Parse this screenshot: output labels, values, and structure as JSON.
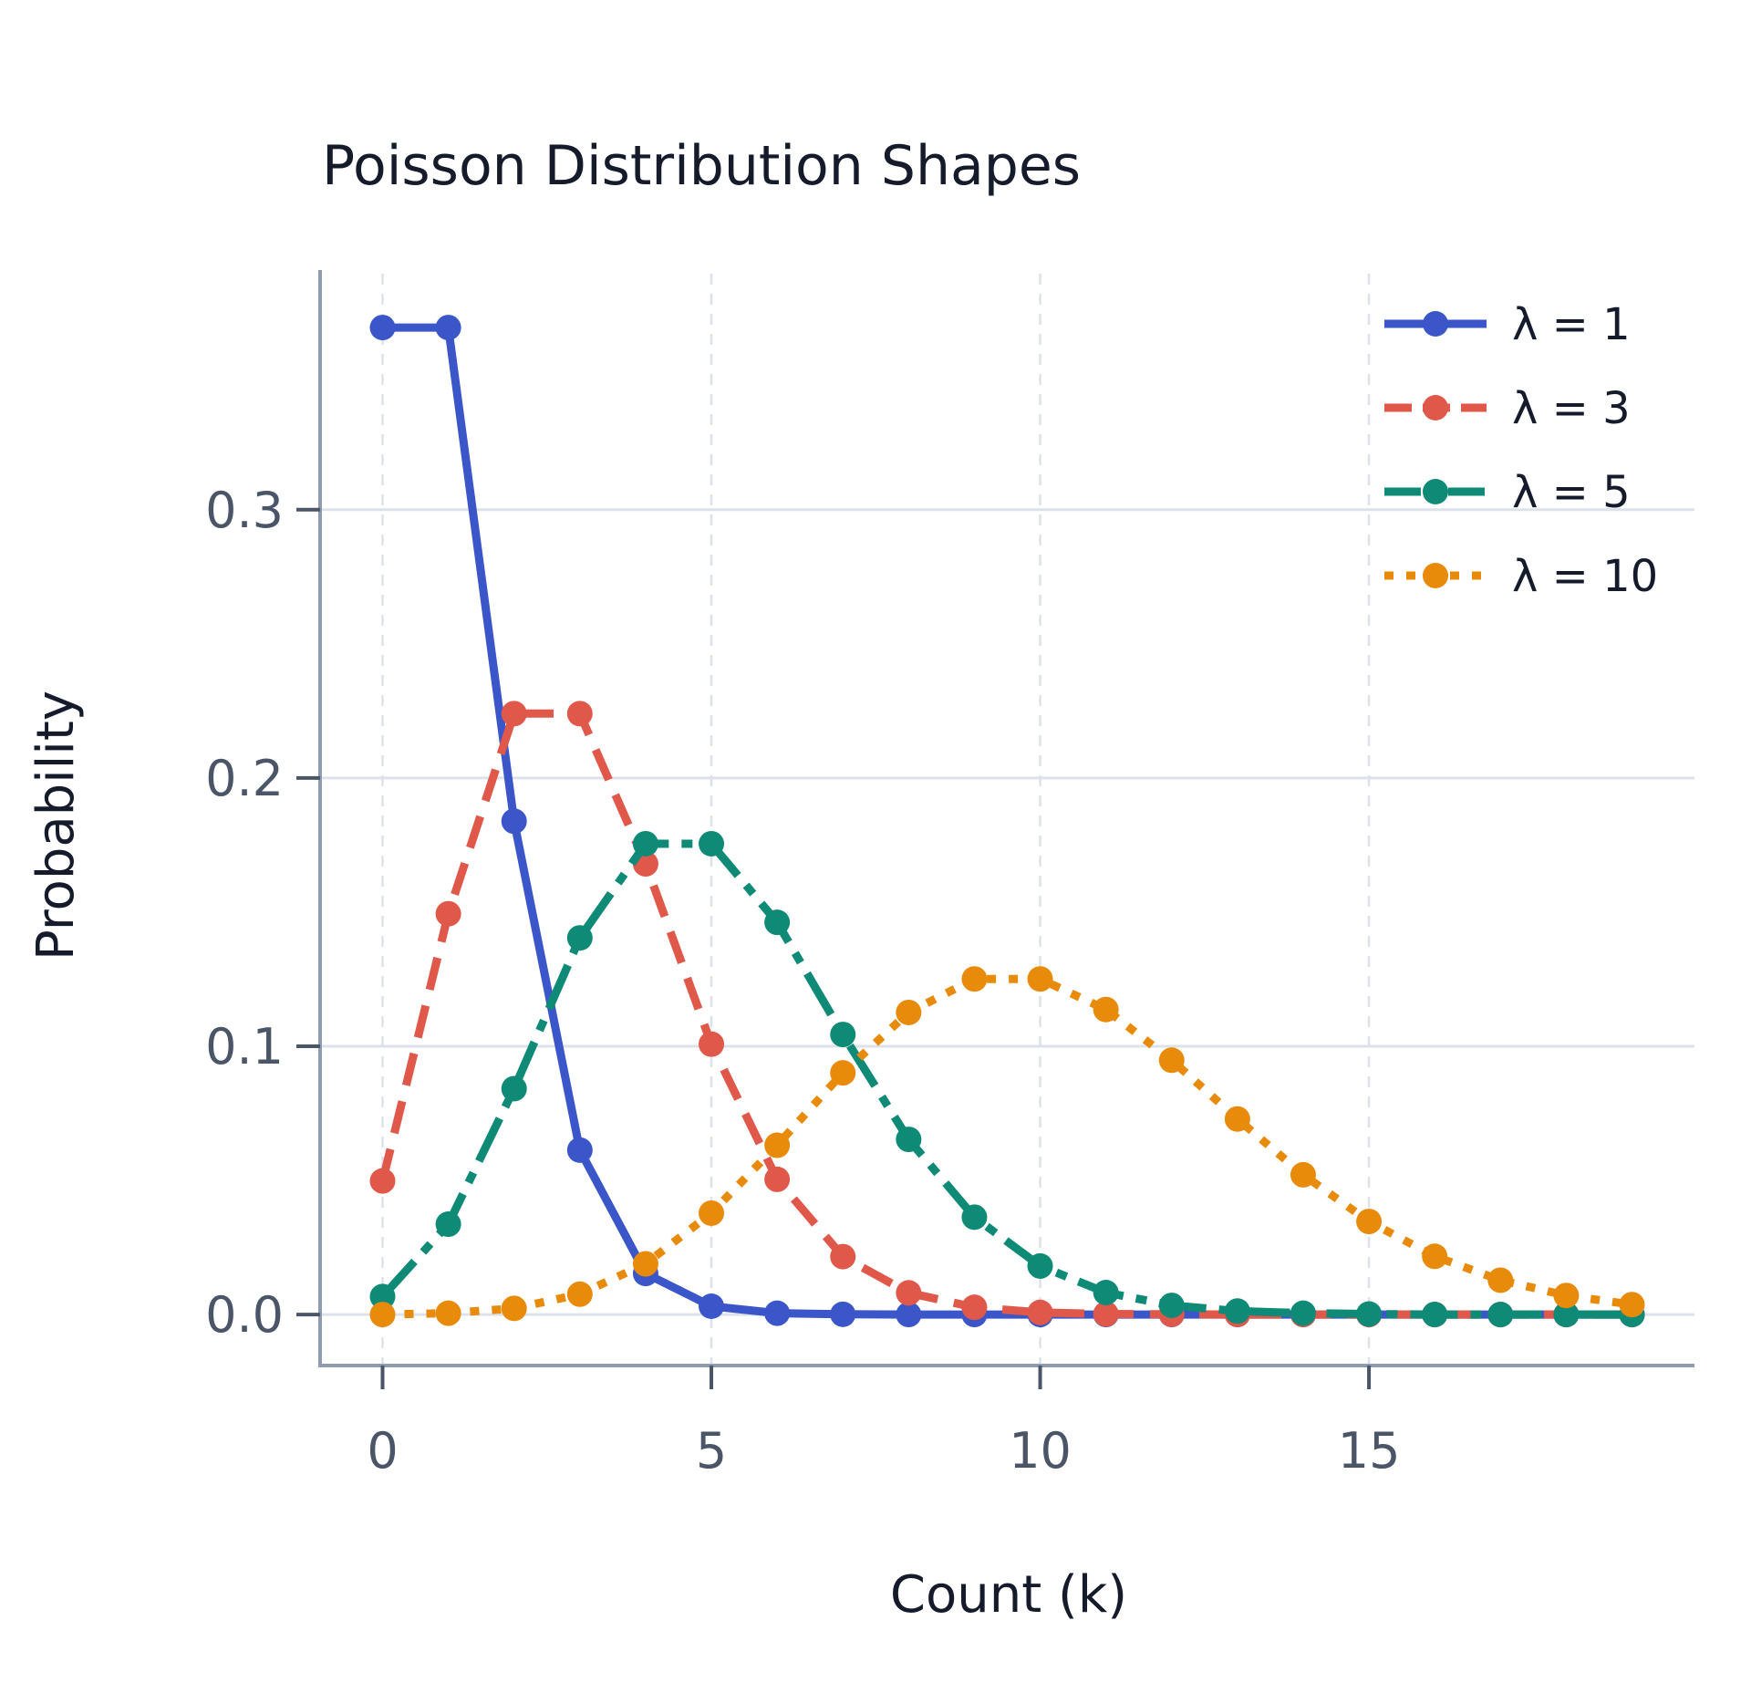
{
  "chart_data": {
    "type": "line",
    "title": "Poisson Distribution Shapes",
    "xlabel": "Count (k)",
    "ylabel": "Probability",
    "xlim": [
      -0.95,
      19.95
    ],
    "ylim": [
      -0.019,
      0.388
    ],
    "x_ticks": [
      0,
      5,
      10,
      15
    ],
    "x_tick_labels": [
      "0",
      "5",
      "10",
      "15"
    ],
    "y_ticks": [
      0.0,
      0.1,
      0.2,
      0.3
    ],
    "y_tick_labels": [
      "0.0",
      "0.1",
      "0.2",
      "0.3"
    ],
    "grid": true,
    "legend_position": "top-right",
    "x": [
      0,
      1,
      2,
      3,
      4,
      5,
      6,
      7,
      8,
      9,
      10,
      11,
      12,
      13,
      14,
      15,
      16,
      17,
      18,
      19
    ],
    "series": [
      {
        "name": "λ = 1",
        "color": "#3a56c8",
        "line_style": "solid",
        "values": [
          0.3679,
          0.3679,
          0.1839,
          0.0613,
          0.0153,
          0.0031,
          0.0005,
          0.0001,
          0.0,
          0.0,
          0.0,
          0.0,
          0.0,
          0.0,
          0.0,
          0.0,
          0.0,
          0.0,
          0.0,
          0.0
        ]
      },
      {
        "name": "λ = 3",
        "color": "#e0584a",
        "line_style": "dashed",
        "values": [
          0.0498,
          0.1494,
          0.224,
          0.224,
          0.168,
          0.1008,
          0.0504,
          0.0216,
          0.0081,
          0.0027,
          0.0008,
          0.0002,
          0.0001,
          0.0,
          0.0,
          0.0,
          0.0,
          0.0,
          0.0,
          0.0
        ]
      },
      {
        "name": "λ = 5",
        "color": "#0e8a76",
        "line_style": "dashdot",
        "values": [
          0.0067,
          0.0337,
          0.0842,
          0.1404,
          0.1755,
          0.1755,
          0.1462,
          0.1044,
          0.0653,
          0.0363,
          0.0181,
          0.0082,
          0.0034,
          0.0013,
          0.0005,
          0.0002,
          0.0,
          0.0,
          0.0,
          0.0
        ]
      },
      {
        "name": "λ = 10",
        "color": "#e88a0a",
        "line_style": "dotted",
        "values": [
          0.0,
          0.0005,
          0.0023,
          0.0076,
          0.0189,
          0.0378,
          0.0631,
          0.0901,
          0.1126,
          0.1251,
          0.1251,
          0.1137,
          0.0948,
          0.0729,
          0.0521,
          0.0347,
          0.0217,
          0.0128,
          0.0071,
          0.0037
        ]
      }
    ]
  }
}
